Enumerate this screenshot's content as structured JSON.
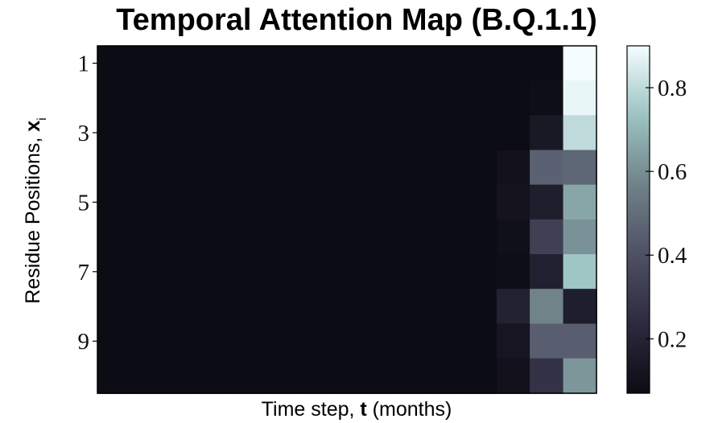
{
  "chart_data": {
    "type": "heatmap",
    "title": "Temporal Attention Map (B.Q.1.1)",
    "xlabel": {
      "prefix": "Time step, ",
      "bold": "t",
      "suffix": " (months)"
    },
    "ylabel": {
      "prefix": "Residue Positions, ",
      "bold": "x",
      "subscript": "i"
    },
    "rows": 10,
    "cols": 15,
    "y_tick_labels": [
      "1",
      "3",
      "5",
      "7",
      "9"
    ],
    "y_tick_rows": [
      0,
      2,
      4,
      6,
      8
    ],
    "values": [
      [
        0.07,
        0.07,
        0.07,
        0.07,
        0.07,
        0.07,
        0.07,
        0.07,
        0.07,
        0.07,
        0.07,
        0.07,
        0.07,
        0.07,
        0.9
      ],
      [
        0.07,
        0.07,
        0.07,
        0.07,
        0.07,
        0.07,
        0.07,
        0.07,
        0.07,
        0.07,
        0.07,
        0.07,
        0.07,
        0.08,
        0.88
      ],
      [
        0.07,
        0.07,
        0.07,
        0.07,
        0.07,
        0.07,
        0.07,
        0.07,
        0.07,
        0.07,
        0.07,
        0.07,
        0.07,
        0.14,
        0.8
      ],
      [
        0.07,
        0.07,
        0.07,
        0.07,
        0.07,
        0.07,
        0.07,
        0.07,
        0.07,
        0.07,
        0.07,
        0.07,
        0.1,
        0.46,
        0.48
      ],
      [
        0.07,
        0.07,
        0.07,
        0.07,
        0.07,
        0.07,
        0.07,
        0.07,
        0.07,
        0.07,
        0.07,
        0.07,
        0.11,
        0.17,
        0.66
      ],
      [
        0.07,
        0.07,
        0.07,
        0.07,
        0.07,
        0.07,
        0.07,
        0.07,
        0.07,
        0.07,
        0.07,
        0.07,
        0.09,
        0.33,
        0.61
      ],
      [
        0.07,
        0.07,
        0.07,
        0.07,
        0.07,
        0.07,
        0.07,
        0.07,
        0.07,
        0.07,
        0.07,
        0.07,
        0.08,
        0.18,
        0.74
      ],
      [
        0.07,
        0.07,
        0.07,
        0.07,
        0.07,
        0.07,
        0.07,
        0.07,
        0.07,
        0.07,
        0.07,
        0.07,
        0.19,
        0.57,
        0.17
      ],
      [
        0.07,
        0.07,
        0.07,
        0.07,
        0.07,
        0.07,
        0.07,
        0.07,
        0.07,
        0.07,
        0.07,
        0.07,
        0.12,
        0.45,
        0.45
      ],
      [
        0.07,
        0.07,
        0.07,
        0.07,
        0.07,
        0.07,
        0.07,
        0.07,
        0.07,
        0.07,
        0.07,
        0.07,
        0.1,
        0.27,
        0.62
      ]
    ],
    "colorbar": {
      "min": 0.07,
      "max": 0.9,
      "ticks": [
        0.2,
        0.4,
        0.6,
        0.8
      ],
      "tick_labels": [
        "0.2",
        "0.4",
        "0.6",
        "0.8"
      ],
      "colormap": "bone",
      "colors": [
        "#0c0c14",
        "#2c2a3e",
        "#4f5066",
        "#6f8288",
        "#9cc3c2",
        "#f4fdff"
      ]
    }
  }
}
